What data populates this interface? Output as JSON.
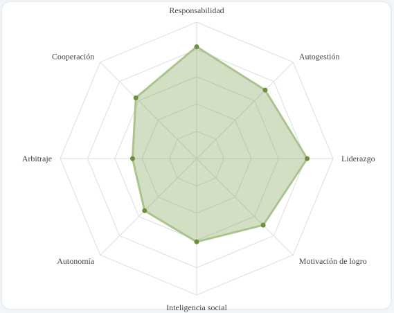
{
  "chart_data": {
    "type": "radar",
    "axes": [
      "Responsabilidad",
      "Autogestión",
      "Liderazgo",
      "Motivación de logro",
      "Inteligencia social",
      "Autonomía",
      "Arbitraje",
      "Cooperación"
    ],
    "series": [
      {
        "values": [
          82,
          71,
          81,
          69,
          61,
          54,
          47,
          63
        ]
      }
    ],
    "range": [
      0,
      100
    ],
    "grid_levels": 5,
    "grid": true,
    "colors": {
      "fill": "rgba(128,162,88,0.35)",
      "stroke": "#a9c48c",
      "point": "#6e8f3a",
      "grid": "#dddddd"
    }
  }
}
